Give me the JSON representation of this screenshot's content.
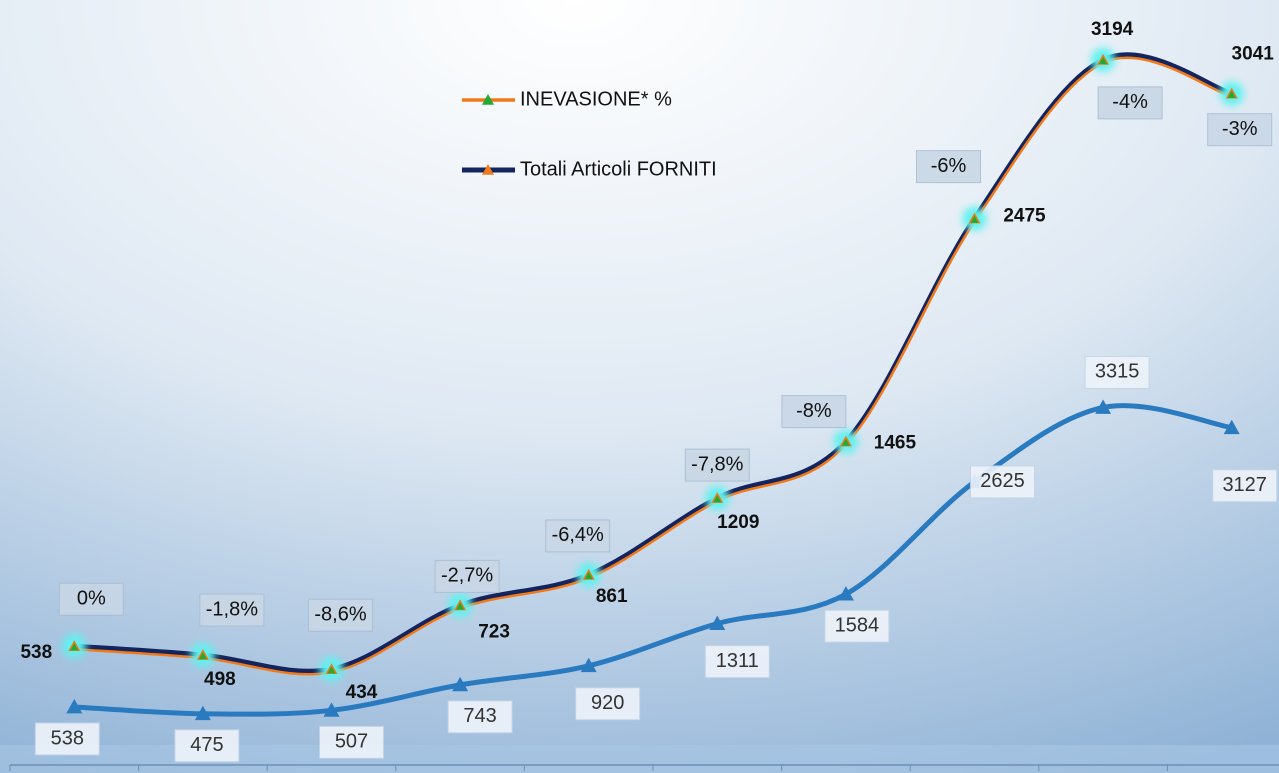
{
  "chart_data": {
    "type": "line",
    "categories": [
      null,
      null,
      null,
      null,
      null,
      null,
      null,
      null,
      null,
      null
    ],
    "ylim": [
      0,
      3420
    ],
    "y2lim": [
      0,
      7000
    ],
    "legend": "top",
    "series": [
      {
        "name": "INEVASIONE*  %",
        "color": "#f07a1a",
        "marker_color": "#22aa33",
        "values": [
          0,
          -1.8,
          -8.6,
          -2.7,
          -6.4,
          -7.8,
          -8,
          -6,
          -4,
          -3
        ],
        "value_labels": [
          "0%",
          "-1,8%",
          "-8,6%",
          "-2,7%",
          "-6,4%",
          "-7,8%",
          "-8%",
          "-6%",
          "-4%",
          "-3%"
        ]
      },
      {
        "name": "Totali Articoli FORNITI",
        "color": "#14245e",
        "marker_color": "#f07a1a",
        "values": [
          538,
          498,
          434,
          723,
          861,
          1209,
          1465,
          2475,
          3194,
          3041
        ]
      },
      {
        "color": "#2a7ac0",
        "axis": "y2",
        "values": [
          538,
          475,
          507,
          743,
          920,
          1311,
          1584,
          2625,
          3315,
          3127
        ]
      }
    ]
  }
}
